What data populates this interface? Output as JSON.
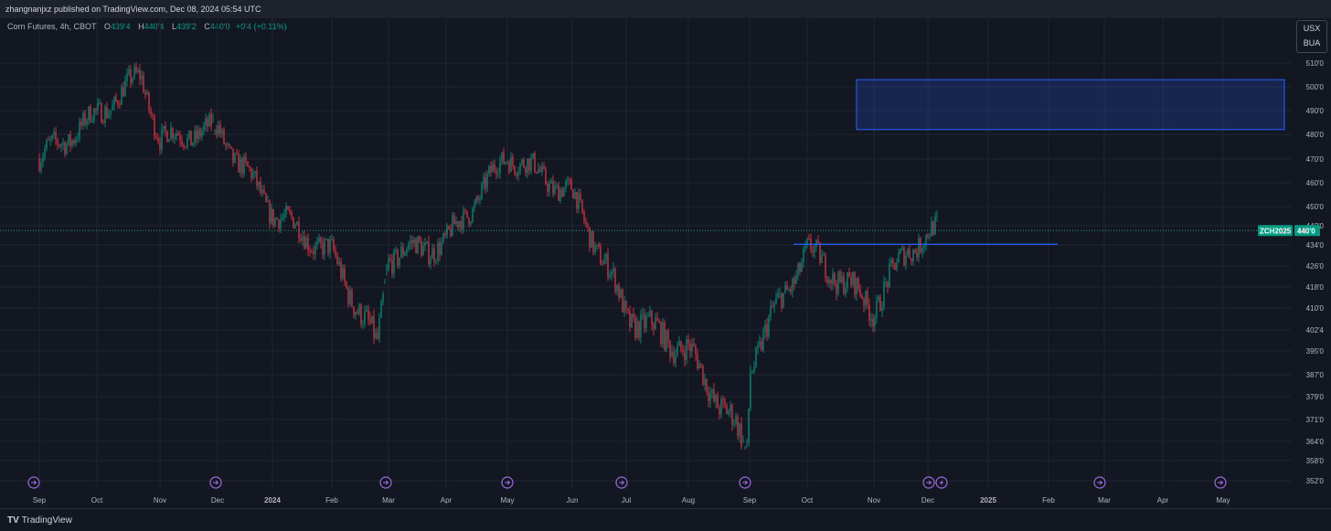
{
  "header": {
    "published": "zhangnanjxz published on TradingView.com, Dec 08, 2024 05:54 UTC"
  },
  "legend": {
    "symbol": "Corn Futures, 4h, CBOT",
    "open_label": "O",
    "open": "439'4",
    "high_label": "H",
    "high": "440'4",
    "low_label": "L",
    "low": "439'2",
    "close_label": "C",
    "close": "440'0",
    "change": "+0'4 (+0.11%)"
  },
  "currency": {
    "line1": "USX",
    "line2": "BUA"
  },
  "footer": {
    "brand": "TradingView"
  },
  "colors": {
    "up": "#089981",
    "down": "#f23645",
    "zone": "#2962ff",
    "bg": "#131722",
    "grid": "#1f2430"
  },
  "chart_data": {
    "type": "candlestick",
    "symbol_tag": "ZCH2025",
    "last_price_label": "440'0",
    "last_price": 440,
    "y_ticks": [
      "510'0",
      "500'0",
      "490'0",
      "480'0",
      "470'0",
      "460'0",
      "450'0",
      "442'0",
      "434'0",
      "426'0",
      "418'0",
      "410'0",
      "402'4",
      "395'0",
      "387'0",
      "379'0",
      "371'0",
      "364'0",
      "358'0",
      "352'0"
    ],
    "x_ticks": [
      "Sep",
      "Oct",
      "Nov",
      "Dec",
      "2024",
      "Feb",
      "Mar",
      "Apr",
      "May",
      "Jun",
      "Jul",
      "Aug",
      "Sep",
      "Oct",
      "Nov",
      "Dec",
      "2025",
      "Feb",
      "Mar",
      "Apr",
      "May"
    ],
    "monthly_path": [
      {
        "x": "2023-09",
        "y": 470
      },
      {
        "x": "2023-10",
        "y": 488
      },
      {
        "x": "2023-10-22",
        "y": 505
      },
      {
        "x": "2023-11",
        "y": 478
      },
      {
        "x": "2023-12",
        "y": 482
      },
      {
        "x": "2024-01",
        "y": 448
      },
      {
        "x": "2024-02",
        "y": 430
      },
      {
        "x": "2024-02-25",
        "y": 396
      },
      {
        "x": "2024-03",
        "y": 430
      },
      {
        "x": "2024-04",
        "y": 435
      },
      {
        "x": "2024-05",
        "y": 472
      },
      {
        "x": "2024-06",
        "y": 455
      },
      {
        "x": "2024-07",
        "y": 408
      },
      {
        "x": "2024-08",
        "y": 395
      },
      {
        "x": "2024-08-30",
        "y": 361
      },
      {
        "x": "2024-09",
        "y": 390
      },
      {
        "x": "2024-10",
        "y": 432
      },
      {
        "x": "2024-11",
        "y": 410
      },
      {
        "x": "2024-11-20",
        "y": 433
      },
      {
        "x": "2024-12-06",
        "y": 440
      }
    ],
    "resistance_line": {
      "price": 434.3,
      "from": "Sep 2024",
      "to": "Feb 2025"
    },
    "target_zone": {
      "low": 482,
      "high": 503,
      "from": "Nov 2024",
      "to": "May 2025"
    },
    "event_markers": [
      "Sep",
      "Dec",
      "Mar",
      "May",
      "Jul",
      "Sep",
      "Dec",
      "Dec",
      "Mar",
      "May"
    ]
  }
}
